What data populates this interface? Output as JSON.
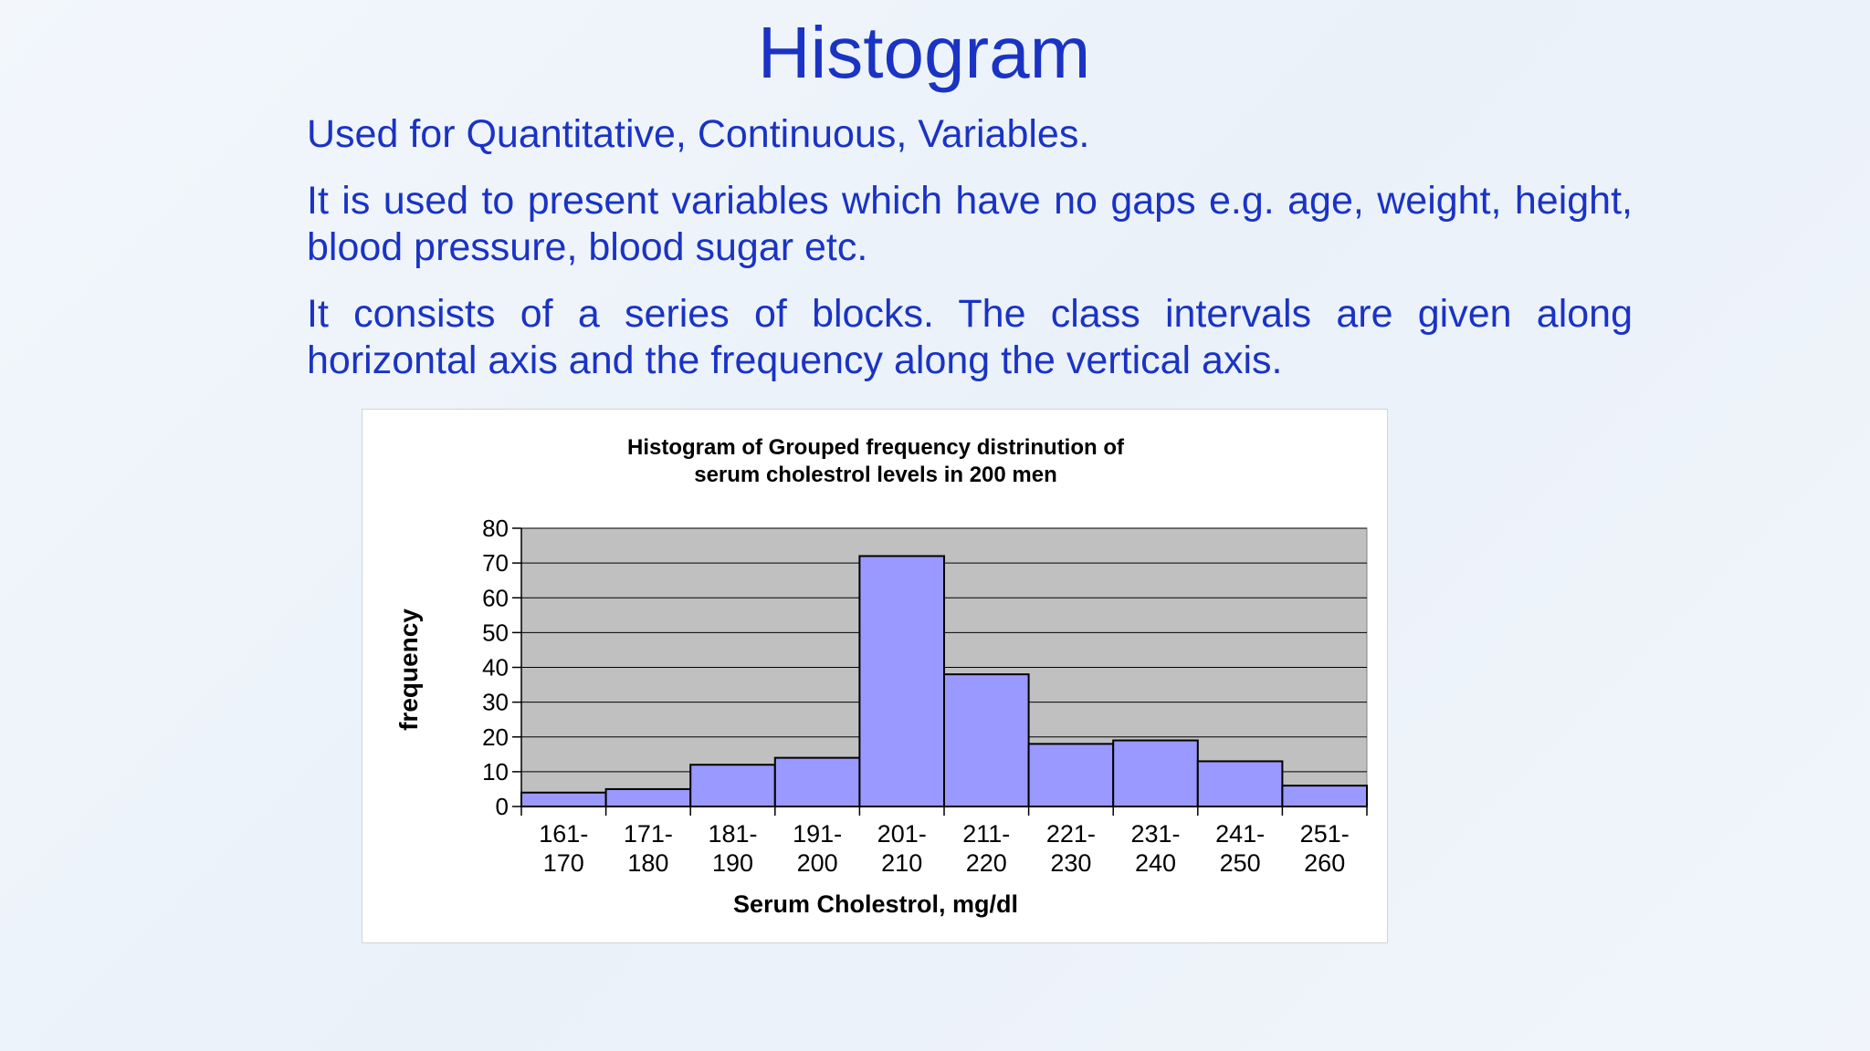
{
  "slide": {
    "title": "Histogram",
    "bullets": [
      "Used for Quantitative, Continuous, Variables.",
      "It is used to present variables which have no gaps e.g. age, weight, height, blood pressure, blood sugar etc.",
      "It consists of a series of blocks. The class intervals are given along horizontal axis and the frequency along the vertical axis."
    ]
  },
  "chart_data": {
    "type": "bar",
    "title_lines": [
      "Histogram of Grouped frequency distrinution of",
      "serum cholestrol levels in 200 men"
    ],
    "xlabel": "Serum Cholestrol, mg/dl",
    "ylabel": "frequency",
    "categories": [
      [
        "161-",
        "170"
      ],
      [
        "171-",
        "180"
      ],
      [
        "181-",
        "190"
      ],
      [
        "191-",
        "200"
      ],
      [
        "201-",
        "210"
      ],
      [
        "211-",
        "220"
      ],
      [
        "221-",
        "230"
      ],
      [
        "231-",
        "240"
      ],
      [
        "241-",
        "250"
      ],
      [
        "251-",
        "260"
      ]
    ],
    "values": [
      4,
      5,
      12,
      14,
      72,
      38,
      18,
      19,
      13,
      6
    ],
    "ylim": [
      0,
      80
    ],
    "yticks": [
      0,
      10,
      20,
      30,
      40,
      50,
      60,
      70,
      80
    ],
    "grid": true,
    "colors": {
      "bar": "#9999ff",
      "plot_bg": "#c0c0c0",
      "gridline": "#000000"
    }
  }
}
